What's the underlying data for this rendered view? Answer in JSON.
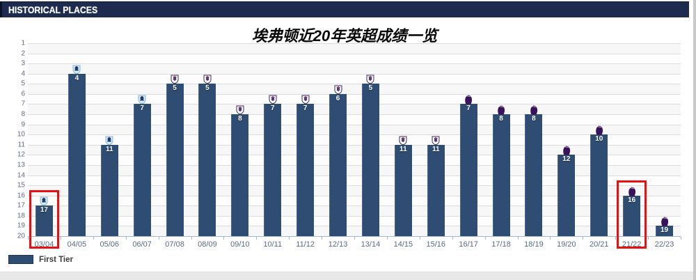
{
  "header": {
    "title": "HISTORICAL PLACES"
  },
  "chart_data": {
    "type": "bar",
    "title": "埃弗顿近20年英超成绩一览",
    "series_name": "First Tier",
    "categories": [
      "03/04",
      "04/05",
      "05/06",
      "06/07",
      "07/08",
      "08/09",
      "09/10",
      "10/11",
      "11/12",
      "12/13",
      "13/14",
      "14/15",
      "15/16",
      "16/17",
      "17/18",
      "18/19",
      "19/20",
      "20/21",
      "21/22",
      "22/23"
    ],
    "values": [
      17,
      4,
      11,
      7,
      5,
      5,
      8,
      7,
      7,
      6,
      5,
      11,
      11,
      7,
      8,
      8,
      12,
      10,
      16,
      19
    ],
    "badge_icons": [
      "barclays-premiership-badge-icon",
      "barclays-premiership-badge-icon",
      "barclays-premiership-badge-icon",
      "barclays-premiership-badge-icon",
      "premier-league-shield-icon",
      "premier-league-shield-icon",
      "premier-league-shield-icon",
      "premier-league-shield-icon",
      "premier-league-shield-icon",
      "premier-league-shield-icon",
      "premier-league-shield-icon",
      "premier-league-shield-icon",
      "premier-league-shield-icon",
      "premier-league-lion-icon",
      "premier-league-lion-icon",
      "premier-league-lion-icon",
      "premier-league-lion-icon",
      "premier-league-lion-icon",
      "premier-league-lion-icon",
      "premier-league-lion-icon"
    ],
    "y_ticks": [
      1,
      2,
      3,
      4,
      5,
      6,
      7,
      8,
      9,
      10,
      11,
      12,
      13,
      14,
      15,
      16,
      17,
      18,
      19,
      20
    ],
    "ylim": [
      1,
      20
    ],
    "y_axis_inverted": true,
    "grid": true,
    "legend_position": "bottom-left",
    "highlighted_categories": [
      "03/04",
      "21/22"
    ],
    "colors": {
      "bar": "#2f4d72",
      "highlight_box": "#e81010",
      "header_bg": "#1e2b4e",
      "gridline": "#dcdcdc",
      "band": "#f7f7f7",
      "axis": "#9fb8d4"
    }
  },
  "legend": {
    "label": "First Tier"
  }
}
